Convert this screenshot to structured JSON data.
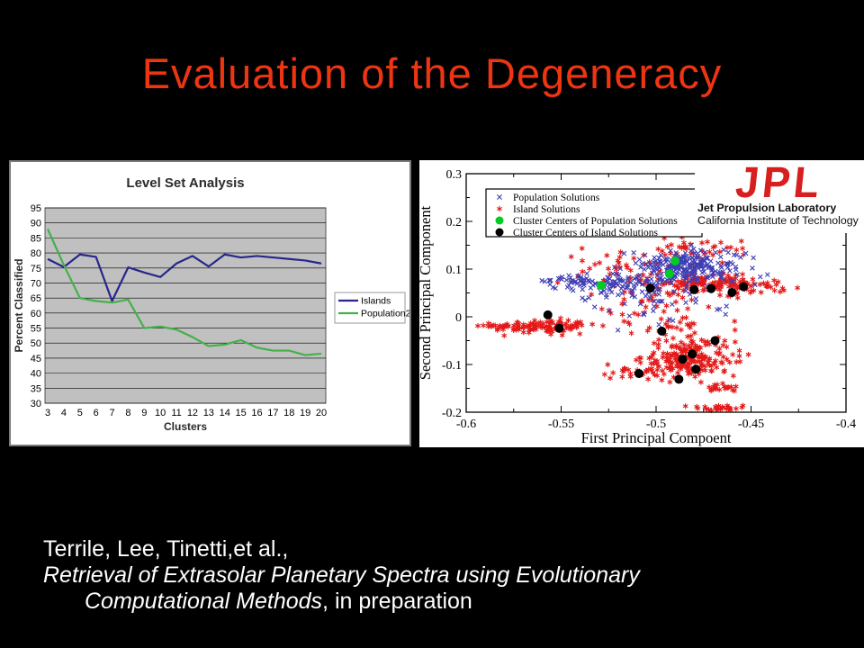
{
  "slide": {
    "title": "Evaluation of the Degeneracy",
    "title_color": "#ee3512",
    "background": "#000000"
  },
  "jpl_logo": {
    "acronym": "JPL",
    "line1": "Jet Propulsion Laboratory",
    "line2": "California Institute of Technology",
    "red": "#d81e1e"
  },
  "citation": {
    "authors": "Terrile, Lee, Tinetti,et al.,",
    "title_line1": "Retrieval of Extrasolar Planetary Spectra using Evolutionary",
    "title_line2_italic": "Computational Methods",
    "suffix": ", in preparation"
  },
  "chart_data": [
    {
      "type": "line",
      "title": "Level Set Analysis",
      "xlabel": "Clusters",
      "ylabel": "Percent Classified",
      "categories": [
        3,
        4,
        5,
        6,
        7,
        8,
        9,
        10,
        11,
        12,
        13,
        14,
        15,
        16,
        17,
        18,
        19,
        20
      ],
      "series": [
        {
          "name": "Islands",
          "color": "#26268c",
          "values": [
            78,
            75.3,
            79.5,
            78.7,
            64,
            75.2,
            73.5,
            72,
            76.5,
            79,
            75.5,
            79.5,
            78.5,
            79,
            78.5,
            78,
            77.5,
            76.5
          ]
        },
        {
          "name": "Population2",
          "color": "#44b04a",
          "values": [
            88,
            76,
            65,
            64,
            63.5,
            64.5,
            55,
            55.5,
            54.5,
            52,
            49,
            49.5,
            51,
            48.5,
            47.5,
            47.5,
            46,
            46.5
          ]
        }
      ],
      "ylim": [
        30,
        95
      ],
      "ytick": 5,
      "plot_bg": "#c0c0c0",
      "grid": "horizontal",
      "legend_position": "right-outside"
    },
    {
      "type": "scatter",
      "xlabel": "First Principal Compoent",
      "ylabel": "Second Principal Component",
      "xlim": [
        -0.6,
        -0.4
      ],
      "xticks": [
        -0.6,
        -0.55,
        -0.5,
        -0.45,
        -0.4
      ],
      "ylim": [
        -0.2,
        0.3
      ],
      "yticks": [
        -0.2,
        -0.1,
        0,
        0.1,
        0.2,
        0.3
      ],
      "seed": 1234,
      "legend": [
        {
          "label": "Population Solutions",
          "marker": "x",
          "color": "#3e3eb4"
        },
        {
          "label": "Island Solutions",
          "marker": "star",
          "color": "#e41818"
        },
        {
          "label": "Cluster Centers of Population Solutions",
          "marker": "dot",
          "color": "#00cc22"
        },
        {
          "label": "Cluster Centers of Island Solutions",
          "marker": "dot",
          "color": "#000000"
        }
      ],
      "series": [
        {
          "name": "Island Solutions",
          "marker": "star",
          "color": "#e41818",
          "clusters": [
            {
              "cx": -0.556,
              "cy": -0.02,
              "sx": 0.012,
              "sy": 0.007,
              "n": 90
            },
            {
              "cx": -0.577,
              "cy": -0.02,
              "sx": 0.007,
              "sy": 0.004,
              "n": 30
            },
            {
              "cx": -0.471,
              "cy": 0.068,
              "sx": 0.016,
              "sy": 0.009,
              "n": 150
            },
            {
              "cx": -0.482,
              "cy": -0.085,
              "sx": 0.012,
              "sy": 0.02,
              "n": 200
            },
            {
              "cx": -0.51,
              "cy": -0.115,
              "sx": 0.008,
              "sy": 0.008,
              "n": 25
            },
            {
              "cx": -0.515,
              "cy": 0.1,
              "sx": 0.022,
              "sy": 0.022,
              "n": 50
            },
            {
              "cx": -0.497,
              "cy": 0.005,
              "sx": 0.018,
              "sy": 0.035,
              "n": 60
            },
            {
              "cx": -0.48,
              "cy": 0.14,
              "sx": 0.015,
              "sy": 0.013,
              "n": 40
            },
            {
              "cx": -0.466,
              "cy": -0.148,
              "sx": 0.005,
              "sy": 0.005,
              "n": 18
            },
            {
              "cx": -0.464,
              "cy": -0.19,
              "sx": 0.007,
              "sy": 0.003,
              "n": 25
            },
            {
              "cx": -0.44,
              "cy": 0.06,
              "sx": 0.008,
              "sy": 0.012,
              "n": 10
            }
          ]
        },
        {
          "name": "Population Solutions",
          "marker": "x",
          "color": "#3e3eb4",
          "clusters": [
            {
              "cx": -0.487,
              "cy": 0.108,
              "sx": 0.01,
              "sy": 0.016,
              "n": 150
            },
            {
              "cx": -0.478,
              "cy": 0.1,
              "sx": 0.008,
              "sy": 0.02,
              "n": 60
            },
            {
              "cx": -0.522,
              "cy": 0.068,
              "sx": 0.014,
              "sy": 0.009,
              "n": 90
            },
            {
              "cx": -0.545,
              "cy": 0.075,
              "sx": 0.008,
              "sy": 0.006,
              "n": 25
            },
            {
              "cx": -0.5,
              "cy": 0.04,
              "sx": 0.018,
              "sy": 0.03,
              "n": 60
            },
            {
              "cx": -0.462,
              "cy": 0.1,
              "sx": 0.008,
              "sy": 0.025,
              "n": 30
            }
          ]
        },
        {
          "name": "Cluster Centers of Island Solutions",
          "marker": "dot",
          "color": "#000000",
          "points": [
            [
              -0.557,
              0.004
            ],
            [
              -0.551,
              -0.024
            ],
            [
              -0.503,
              0.06
            ],
            [
              -0.48,
              0.057
            ],
            [
              -0.471,
              0.059
            ],
            [
              -0.46,
              0.051
            ],
            [
              -0.454,
              0.063
            ],
            [
              -0.497,
              -0.03
            ],
            [
              -0.469,
              -0.05
            ],
            [
              -0.481,
              -0.078
            ],
            [
              -0.486,
              -0.089
            ],
            [
              -0.479,
              -0.11
            ],
            [
              -0.509,
              -0.119
            ],
            [
              -0.488,
              -0.131
            ]
          ]
        },
        {
          "name": "Cluster Centers of Population Solutions",
          "marker": "dot",
          "color": "#00cc22",
          "points": [
            [
              -0.529,
              0.066
            ],
            [
              -0.493,
              0.09
            ],
            [
              -0.49,
              0.117
            ]
          ]
        }
      ]
    }
  ]
}
